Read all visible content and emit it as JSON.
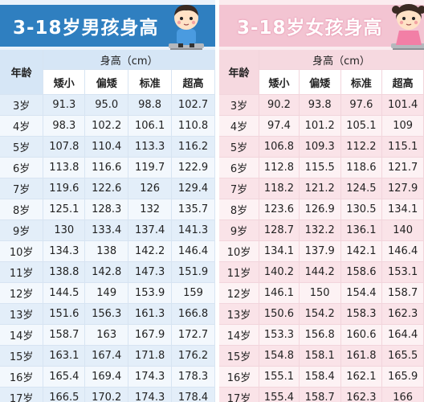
{
  "boys": {
    "title": "3-18岁男孩身高",
    "age_header": "年龄",
    "unit_header": "身高（cm）",
    "categories": [
      "矮小",
      "偏矮",
      "标准",
      "超高"
    ],
    "rows": [
      {
        "age": "3岁",
        "v": [
          "91.3",
          "95.0",
          "98.8",
          "102.7"
        ]
      },
      {
        "age": "4岁",
        "v": [
          "98.3",
          "102.2",
          "106.1",
          "110.8"
        ]
      },
      {
        "age": "5岁",
        "v": [
          "107.8",
          "110.4",
          "113.3",
          "116.2"
        ]
      },
      {
        "age": "6岁",
        "v": [
          "113.8",
          "116.6",
          "119.7",
          "122.9"
        ]
      },
      {
        "age": "7岁",
        "v": [
          "119.6",
          "122.6",
          "126",
          "129.4"
        ]
      },
      {
        "age": "8岁",
        "v": [
          "125.1",
          "128.3",
          "132",
          "135.7"
        ]
      },
      {
        "age": "9岁",
        "v": [
          "130",
          "133.4",
          "137.4",
          "141.3"
        ]
      },
      {
        "age": "10岁",
        "v": [
          "134.3",
          "138",
          "142.2",
          "146.4"
        ]
      },
      {
        "age": "11岁",
        "v": [
          "138.8",
          "142.8",
          "147.3",
          "151.9"
        ]
      },
      {
        "age": "12岁",
        "v": [
          "144.5",
          "149",
          "153.9",
          "159"
        ]
      },
      {
        "age": "13岁",
        "v": [
          "151.6",
          "156.3",
          "161.3",
          "166.8"
        ]
      },
      {
        "age": "14岁",
        "v": [
          "158.7",
          "163",
          "167.9",
          "172.7"
        ]
      },
      {
        "age": "15岁",
        "v": [
          "163.1",
          "167.4",
          "171.8",
          "176.2"
        ]
      },
      {
        "age": "16岁",
        "v": [
          "165.4",
          "169.4",
          "174.3",
          "178.3"
        ]
      },
      {
        "age": "17岁",
        "v": [
          "166.5",
          "170.2",
          "174.3",
          "178.4"
        ]
      }
    ]
  },
  "girls": {
    "title": "3-18岁女孩身高",
    "age_header": "年龄",
    "unit_header": "身高（cm）",
    "categories": [
      "矮小",
      "偏矮",
      "标准",
      "超高"
    ],
    "rows": [
      {
        "age": "3岁",
        "v": [
          "90.2",
          "93.8",
          "97.6",
          "101.4"
        ]
      },
      {
        "age": "4岁",
        "v": [
          "97.4",
          "101.2",
          "105.1",
          "109"
        ]
      },
      {
        "age": "5岁",
        "v": [
          "106.8",
          "109.3",
          "112.2",
          "115.1"
        ]
      },
      {
        "age": "6岁",
        "v": [
          "112.8",
          "115.5",
          "118.6",
          "121.7"
        ]
      },
      {
        "age": "7岁",
        "v": [
          "118.2",
          "121.2",
          "124.5",
          "127.9"
        ]
      },
      {
        "age": "8岁",
        "v": [
          "123.6",
          "126.9",
          "130.5",
          "134.1"
        ]
      },
      {
        "age": "9岁",
        "v": [
          "128.7",
          "132.2",
          "136.1",
          "140"
        ]
      },
      {
        "age": "10岁",
        "v": [
          "134.1",
          "137.9",
          "142.1",
          "146.4"
        ]
      },
      {
        "age": "11岁",
        "v": [
          "140.2",
          "144.2",
          "158.6",
          "153.1"
        ]
      },
      {
        "age": "12岁",
        "v": [
          "146.1",
          "150",
          "154.4",
          "158.7"
        ]
      },
      {
        "age": "13岁",
        "v": [
          "150.6",
          "154.2",
          "158.3",
          "162.3"
        ]
      },
      {
        "age": "14岁",
        "v": [
          "153.3",
          "156.8",
          "160.6",
          "164.4"
        ]
      },
      {
        "age": "15岁",
        "v": [
          "154.8",
          "158.1",
          "161.8",
          "165.5"
        ]
      },
      {
        "age": "16岁",
        "v": [
          "155.1",
          "158.4",
          "162.1",
          "165.9"
        ]
      },
      {
        "age": "17岁",
        "v": [
          "155.4",
          "158.7",
          "162.3",
          "166"
        ]
      }
    ]
  }
}
